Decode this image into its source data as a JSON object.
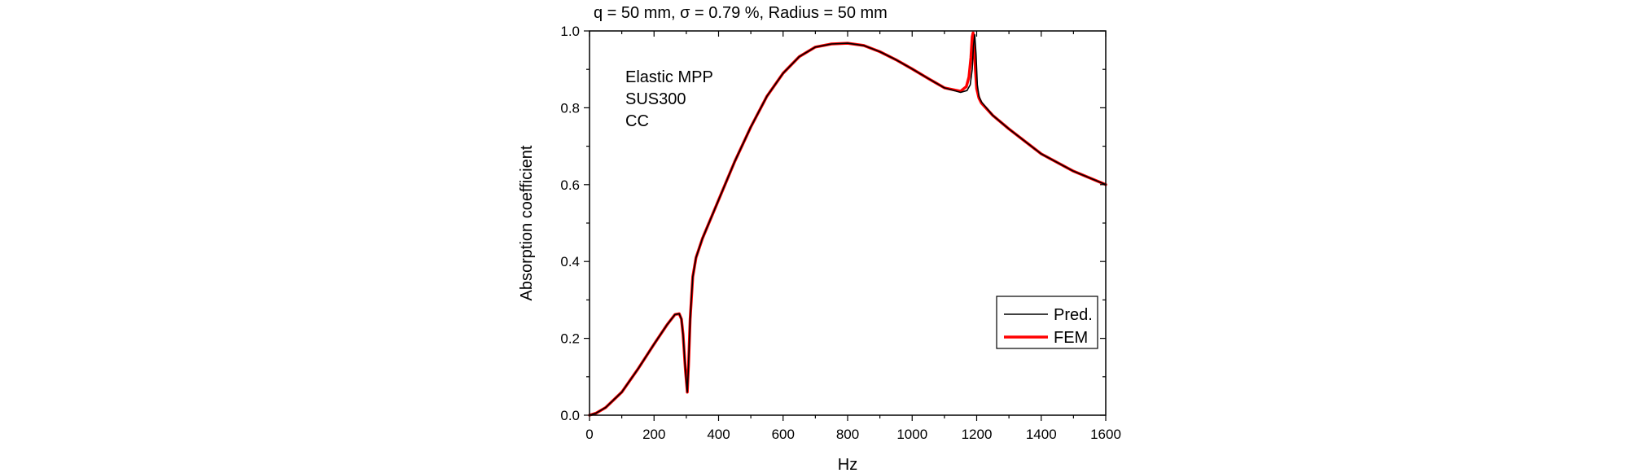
{
  "chart_data": {
    "type": "line",
    "title": "q = 50 mm, σ = 0.79 %, Radius = 50 mm",
    "xlabel": "Hz",
    "ylabel": "Absorption coefficient",
    "xlim": [
      0,
      1600
    ],
    "ylim": [
      0,
      1.0
    ],
    "x_ticks": [
      0,
      200,
      400,
      600,
      800,
      1000,
      1200,
      1400,
      1600
    ],
    "y_ticks": [
      0.0,
      0.2,
      0.4,
      0.6,
      0.8,
      1.0
    ],
    "x_tick_labels": [
      "0",
      "200",
      "400",
      "600",
      "800",
      "1000",
      "1200",
      "1400",
      "1600"
    ],
    "y_tick_labels": [
      "0.0",
      "0.2",
      "0.4",
      "0.6",
      "0.8",
      "1.0"
    ],
    "grid": false,
    "legend_position": "bottom-right",
    "annotation": [
      "Elastic MPP",
      "SUS300",
      "CC"
    ],
    "series": [
      {
        "name": "Pred.",
        "color": "#000000",
        "x": [
          0,
          20,
          50,
          100,
          150,
          200,
          240,
          265,
          278,
          285,
          290,
          297,
          303,
          307,
          312,
          320,
          330,
          350,
          400,
          450,
          500,
          550,
          600,
          650,
          700,
          750,
          800,
          850,
          900,
          950,
          1000,
          1050,
          1100,
          1150,
          1170,
          1180,
          1186,
          1190,
          1194,
          1198,
          1202,
          1207,
          1215,
          1250,
          1300,
          1400,
          1500,
          1600
        ],
        "y": [
          0.0,
          0.005,
          0.02,
          0.06,
          0.12,
          0.185,
          0.235,
          0.262,
          0.264,
          0.25,
          0.21,
          0.12,
          0.06,
          0.13,
          0.25,
          0.36,
          0.41,
          0.46,
          0.56,
          0.66,
          0.75,
          0.83,
          0.89,
          0.933,
          0.958,
          0.966,
          0.968,
          0.962,
          0.946,
          0.925,
          0.901,
          0.876,
          0.852,
          0.84,
          0.845,
          0.86,
          0.9,
          0.96,
          0.99,
          0.94,
          0.86,
          0.83,
          0.815,
          0.78,
          0.745,
          0.68,
          0.635,
          0.6
        ]
      },
      {
        "name": "FEM",
        "color": "#ff0000",
        "x": [
          0,
          20,
          50,
          100,
          150,
          200,
          240,
          265,
          278,
          285,
          290,
          297,
          303,
          307,
          312,
          320,
          330,
          350,
          400,
          450,
          500,
          550,
          600,
          650,
          700,
          750,
          800,
          850,
          900,
          950,
          1000,
          1050,
          1100,
          1150,
          1168,
          1176,
          1182,
          1186,
          1189,
          1192,
          1196,
          1200,
          1207,
          1215,
          1250,
          1300,
          1400,
          1500,
          1600
        ],
        "y": [
          0.0,
          0.005,
          0.02,
          0.06,
          0.12,
          0.185,
          0.235,
          0.262,
          0.264,
          0.25,
          0.21,
          0.12,
          0.06,
          0.13,
          0.25,
          0.36,
          0.41,
          0.46,
          0.56,
          0.66,
          0.75,
          0.83,
          0.89,
          0.933,
          0.958,
          0.966,
          0.968,
          0.962,
          0.946,
          0.925,
          0.901,
          0.876,
          0.852,
          0.843,
          0.855,
          0.88,
          0.93,
          0.985,
          0.995,
          0.97,
          0.9,
          0.85,
          0.825,
          0.812,
          0.78,
          0.745,
          0.68,
          0.635,
          0.6
        ]
      }
    ]
  }
}
